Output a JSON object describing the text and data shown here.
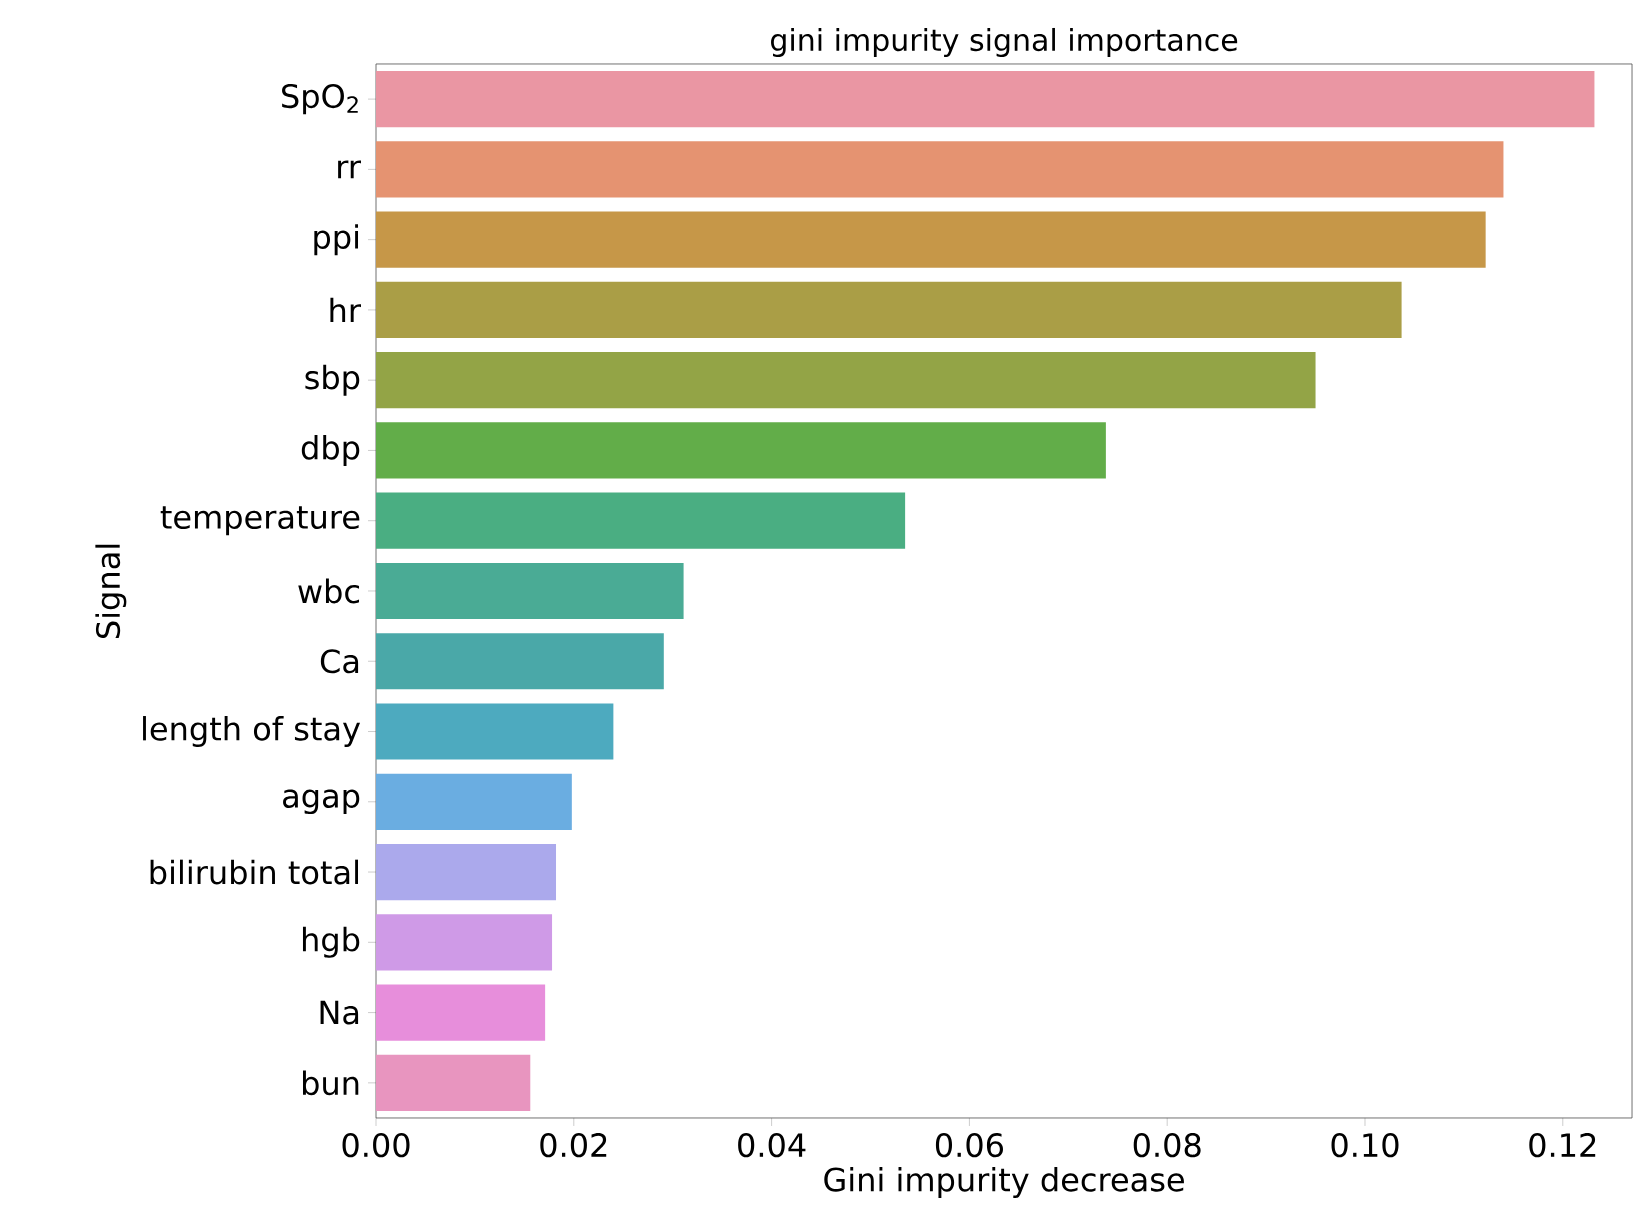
{
  "chart_data": {
    "type": "bar",
    "orientation": "horizontal",
    "title": "gini impurity signal importance",
    "xlabel": "Gini impurity decrease",
    "ylabel": "Signal",
    "categories": [
      "SpO$_{2}$",
      "rr",
      "ppi",
      "hr",
      "sbp",
      "dbp",
      "temperature",
      "wbc",
      "Ca",
      "length of stay",
      "agap",
      "bilirubin total",
      "hgb",
      "Na",
      "bun"
    ],
    "values": [
      0.1232,
      0.114,
      0.1122,
      0.1037,
      0.095,
      0.0738,
      0.0535,
      0.0311,
      0.0291,
      0.024,
      0.0198,
      0.0182,
      0.0178,
      0.0171,
      0.0156
    ],
    "colors": [
      "#ea96a3",
      "#e59371",
      "#c69748",
      "#aa9e46",
      "#93a446",
      "#62ad49",
      "#4aae82",
      "#4aab95",
      "#4aa8a8",
      "#4daabf",
      "#6aade1",
      "#aba9ec",
      "#cf9ae7",
      "#e78edb",
      "#e895bf"
    ],
    "xlim": [
      0,
      0.127
    ],
    "xticks": [
      {
        "value": 0,
        "label": "0.00"
      },
      {
        "value": 0.02,
        "label": "0.02"
      },
      {
        "value": 0.04,
        "label": "0.04"
      },
      {
        "value": 0.06,
        "label": "0.06"
      },
      {
        "value": 0.08,
        "label": "0.08"
      },
      {
        "value": 0.1,
        "label": "0.10"
      },
      {
        "value": 0.12,
        "label": "0.12"
      }
    ]
  }
}
